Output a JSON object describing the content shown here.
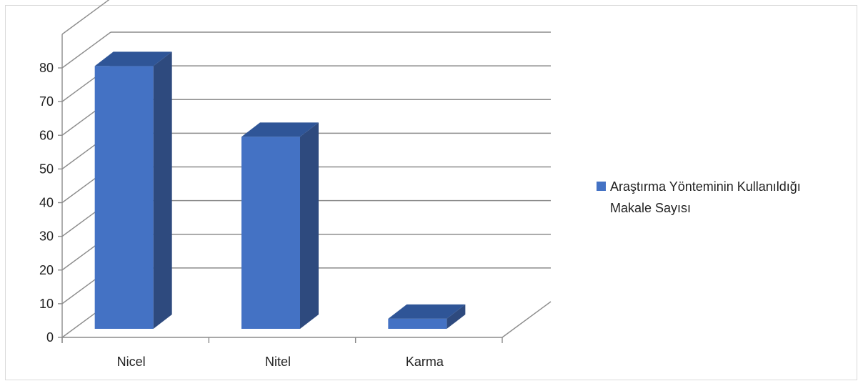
{
  "chart_data": {
    "type": "bar",
    "style": "3d-column",
    "categories": [
      "Nicel",
      "Nitel",
      "Karma"
    ],
    "series": [
      {
        "name": "Araştırma Yönteminin Kullanıldığı Makale Sayısı",
        "values": [
          78,
          57,
          3
        ],
        "color": "#4472C4",
        "side_color": "#2E4A7E",
        "top_color": "#2F5597"
      }
    ],
    "ylim": [
      0,
      80
    ],
    "yticks": [
      0,
      10,
      20,
      30,
      40,
      50,
      60,
      70,
      80
    ],
    "title": "",
    "xlabel": "",
    "ylabel": "",
    "grid": true,
    "legend_position": "right",
    "legend_lines": [
      "Araştırma Yönteminin Kullanıldığı",
      "Makale Sayısı"
    ]
  },
  "colors": {
    "gridline": "#8c8c8c",
    "frame_border": "#d9d9d9",
    "text": "#222222"
  }
}
